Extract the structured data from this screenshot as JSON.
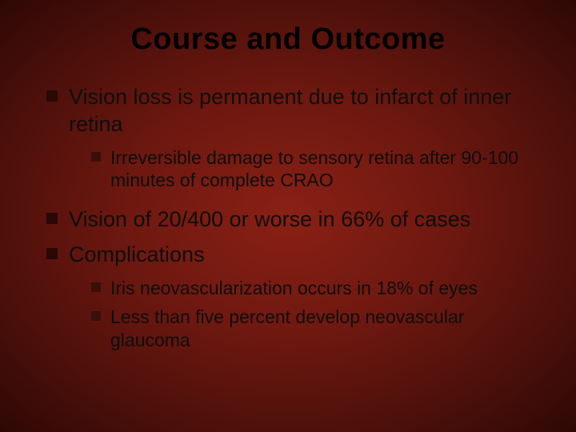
{
  "slide": {
    "title": "Course and Outcome",
    "bullets": [
      {
        "level": 1,
        "text": "Vision loss is permanent due to infarct of inner retina"
      },
      {
        "level": 2,
        "text": "Irreversible damage to sensory retina after 90-100 minutes of complete CRAO"
      },
      {
        "level": 1,
        "text": "Vision of 20/400 or worse in 66% of cases"
      },
      {
        "level": 1,
        "text": "Complications"
      },
      {
        "level": 2,
        "text": "Iris neovascularization occurs in 18% of eyes"
      },
      {
        "level": 2,
        "text": "Less than five percent develop neovascular glaucoma"
      }
    ],
    "style": {
      "background_gradient": [
        "#8a2015",
        "#6d1810",
        "#4a0f0a",
        "#2e0805"
      ],
      "title_color": "#000000",
      "title_fontsize": 38,
      "lvl1_fontsize": 27,
      "lvl2_fontsize": 23,
      "lvl1_marker_color": "#2a0805",
      "lvl2_marker_color": "#3a0f09",
      "text_color": "#0e0e0e",
      "font_family": "Arial"
    }
  }
}
